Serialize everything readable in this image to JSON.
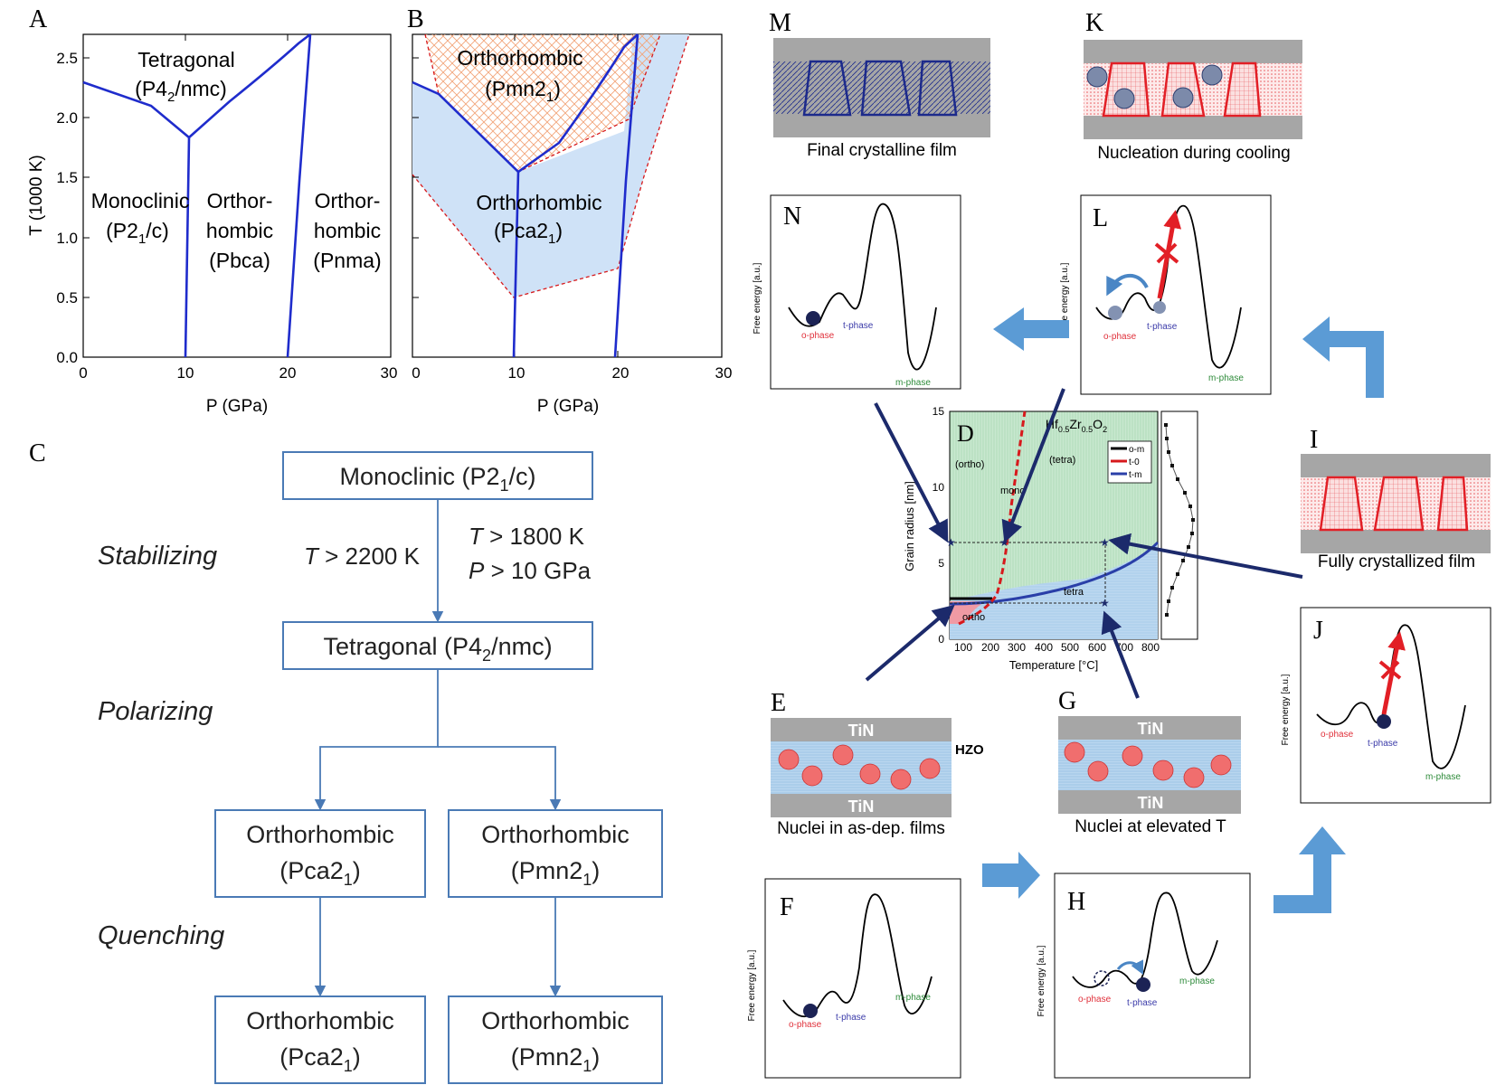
{
  "panels": {
    "A": {
      "letter": "A",
      "ylabel": "T (1000 K)",
      "xlabel": "P (GPa)",
      "yticks": [
        "0.0",
        "0.5",
        "1.0",
        "1.5",
        "2.0",
        "2.5"
      ],
      "xticks": [
        "0",
        "10",
        "20",
        "30"
      ],
      "regions": {
        "tetragonal": [
          "Tetragonal",
          "(P4",
          "2",
          "/nmc)"
        ],
        "monoclinic": [
          "Monoclinic",
          "(P2",
          "1",
          "/c)"
        ],
        "ortho_pbca": [
          "Orthor-",
          "hombic",
          "(Pbca)"
        ],
        "ortho_pnma": [
          "Orthor-",
          "hombic",
          "(Pnma)"
        ]
      }
    },
    "B": {
      "letter": "B",
      "xlabel": "P (GPa)",
      "xticks": [
        "0",
        "10",
        "20",
        "30"
      ],
      "regions": {
        "pmn": [
          "Orthorhombic",
          "(Pmn2",
          "1",
          ")"
        ],
        "pca": [
          "Orthorhombic",
          "(Pca2",
          "1",
          ")"
        ]
      }
    },
    "C": {
      "letter": "C",
      "boxes": {
        "mono": [
          "Monoclinic (P2",
          "1",
          "/c)"
        ],
        "tetra": [
          "Tetragonal (P4",
          "2",
          "/nmc)"
        ],
        "o1": [
          "Orthorhombic",
          "(Pca2",
          "1",
          ")"
        ],
        "o2": [
          "Orthorhombic",
          "(Pmn2",
          "1",
          ")"
        ],
        "o3": [
          "Orthorhombic",
          "(Pca2",
          "1",
          ")"
        ],
        "o4": [
          "Orthorhombic",
          "(Pmn2",
          "1",
          ")"
        ]
      },
      "stages": [
        "Stabilizing",
        "Polarizing",
        "Quenching"
      ],
      "conditions": {
        "t1": [
          "T",
          " > 2200 K"
        ],
        "t2": [
          "T",
          " > 1800 K"
        ],
        "p2": [
          "P",
          " > 10 GPa"
        ]
      }
    },
    "D": {
      "letter": "D",
      "ylabel": "Grain radius [nm]",
      "xlabel": "Temperature [°C]",
      "yticks": [
        "0",
        "5",
        "10",
        "15"
      ],
      "xticks": [
        "100",
        "200",
        "300",
        "400",
        "500",
        "600",
        "700",
        "800"
      ],
      "formula": [
        "Hf",
        "0.5",
        "Zr",
        "0.5",
        "O",
        "2"
      ],
      "legend": [
        "o-m",
        "t-0",
        "t-m"
      ],
      "labels": [
        "(ortho)",
        "(tetra)",
        "mono",
        "tetra",
        "ortho"
      ]
    },
    "captions": {
      "M": "Final crystalline film",
      "K": "Nucleation during cooling",
      "I": "Fully crystallized film",
      "E": "Nuclei in as-dep. films",
      "G": "Nuclei at elevated T"
    },
    "letters": [
      "M",
      "K",
      "N",
      "L",
      "I",
      "J",
      "E",
      "G",
      "F",
      "H"
    ],
    "film": {
      "tin": "TiN",
      "hzo": "HZO"
    },
    "energy": {
      "ylabel": "Free energy [a.u.]",
      "o": "o-phase",
      "t": "t-phase",
      "m": "m-phase"
    }
  },
  "colors": {
    "blue_line": "#1f2ccc",
    "red_dash": "#d7191c",
    "light_blue": "#cfe2f7",
    "hatch_orange": "#f2a57a",
    "box_border": "#4a7ab5",
    "arrow_fill": "#5b9bd5",
    "dark_arrow": "#1c2a6b",
    "green_fill": "#c8e8cf",
    "o_red": "#e0303a",
    "t_blue": "#3a3aa8",
    "m_green": "#2e8b3a"
  }
}
